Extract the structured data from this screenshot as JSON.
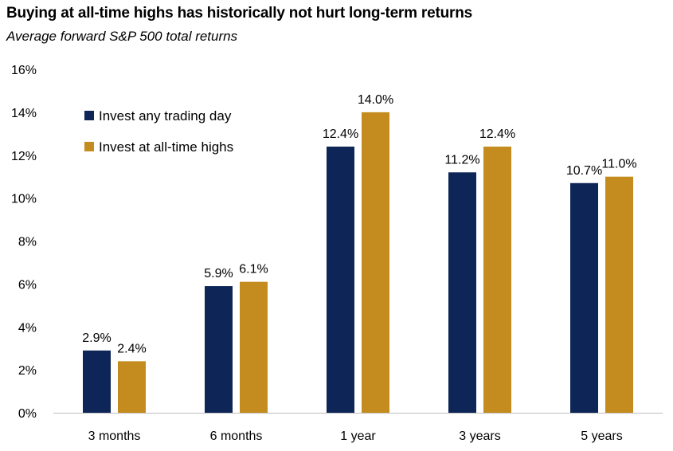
{
  "title": "Buying at all-time highs has historically not hurt long-term returns",
  "subtitle": "Average forward S&P 500 total returns",
  "chart_data": {
    "type": "bar",
    "title": "Buying at all-time highs has historically not hurt long-term returns",
    "subtitle": "Average forward S&P 500 total returns",
    "categories": [
      "3 months",
      "6 months",
      "1 year",
      "3 years",
      "5 years"
    ],
    "series": [
      {
        "name": "Invest any trading day",
        "color": "#0d2557",
        "values": [
          2.9,
          5.9,
          12.4,
          11.2,
          10.7
        ],
        "labels": [
          "2.9%",
          "5.9%",
          "12.4%",
          "11.2%",
          "10.7%"
        ]
      },
      {
        "name": "Invest at all-time highs",
        "color": "#c48c1e",
        "values": [
          2.4,
          6.1,
          14.0,
          12.4,
          11.0
        ],
        "labels": [
          "2.4%",
          "6.1%",
          "14.0%",
          "12.4%",
          "11.0%"
        ]
      }
    ],
    "ylim": [
      0,
      16
    ],
    "yticks": [
      "0%",
      "2%",
      "4%",
      "6%",
      "8%",
      "10%",
      "12%",
      "14%",
      "16%"
    ],
    "grid": false,
    "legend_position": "top-left"
  }
}
